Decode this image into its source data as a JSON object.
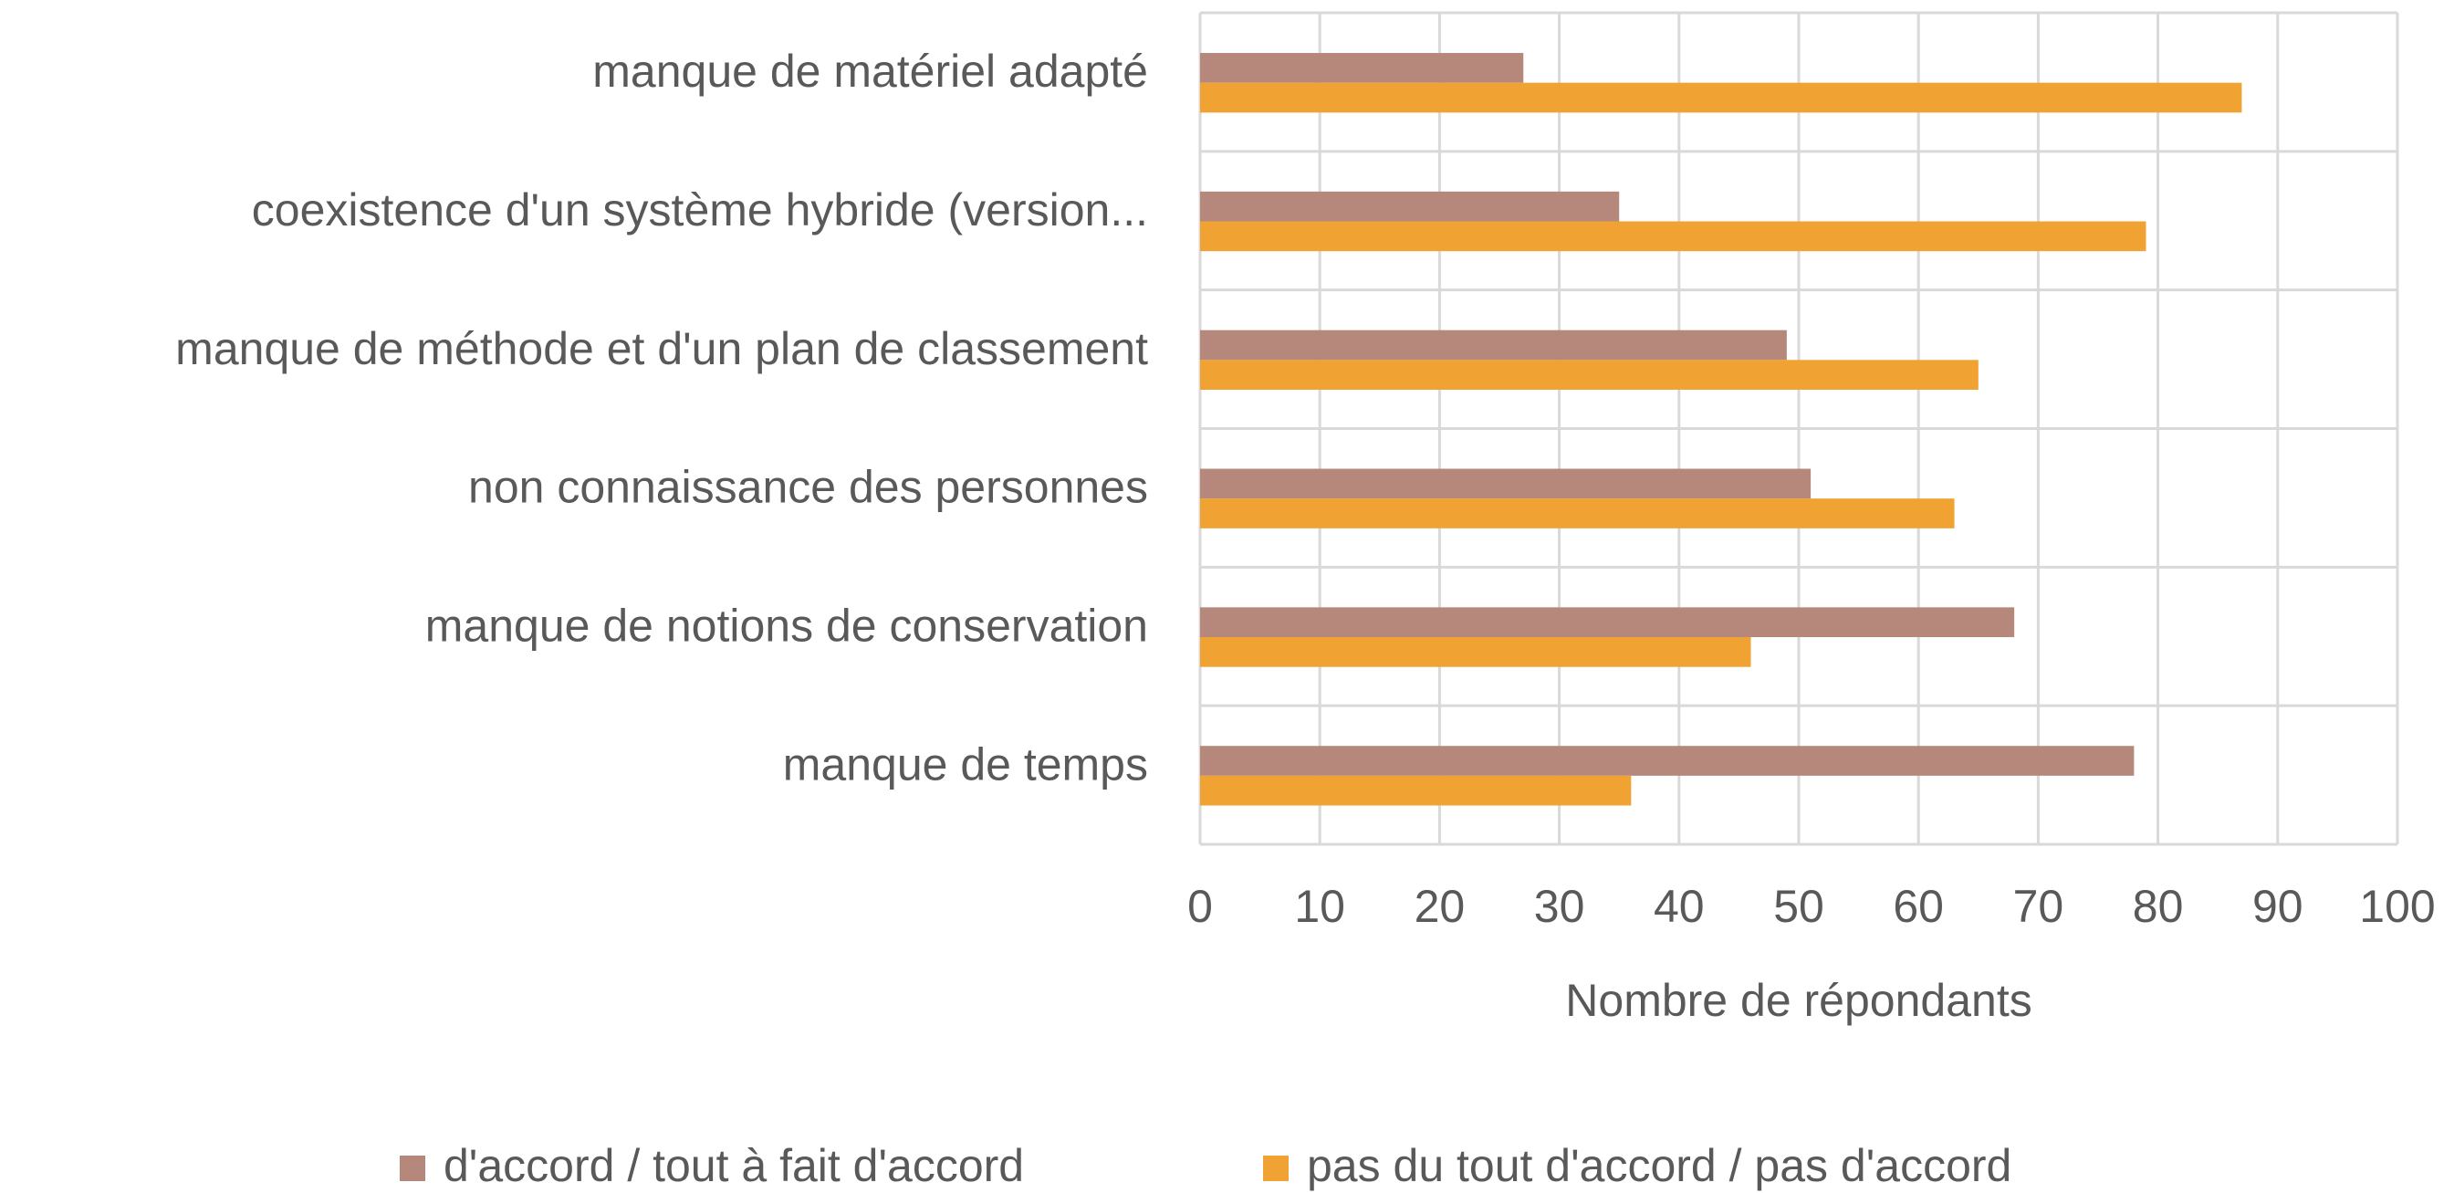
{
  "chart_data": {
    "type": "hbar",
    "categories": [
      "manque de matériel adapté",
      "coexistence d'un système hybride (version...",
      "manque de méthode et d'un plan de classement",
      "non connaissance des personnes",
      "manque de notions de conservation",
      "manque de temps"
    ],
    "series": [
      {
        "name": "d'accord / tout à fait d'accord",
        "color": "#b5887b",
        "values": [
          27,
          35,
          49,
          51,
          68,
          78
        ]
      },
      {
        "name": "pas du tout d'accord / pas d'accord",
        "color": "#f0a232",
        "values": [
          87,
          79,
          65,
          63,
          46,
          36
        ]
      }
    ],
    "xlabel": "Nombre de répondants",
    "xlim": [
      0,
      100
    ],
    "xticks": [
      0,
      10,
      20,
      30,
      40,
      50,
      60,
      70,
      80,
      90,
      100
    ],
    "grid": true,
    "legend": "bottom"
  }
}
